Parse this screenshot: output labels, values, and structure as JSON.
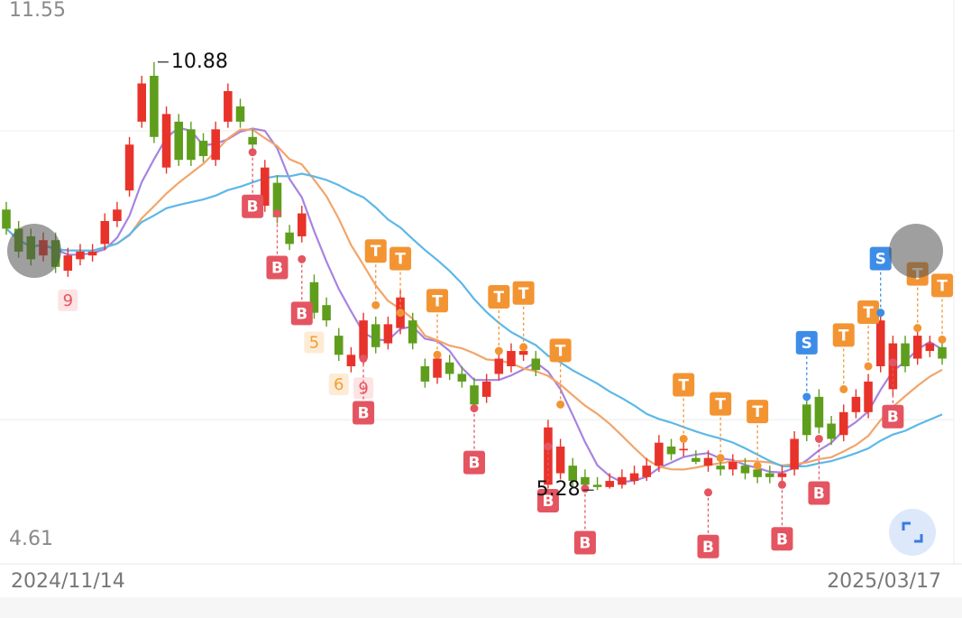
{
  "chart_data": {
    "type": "candlestick",
    "ylim": [
      4.61,
      11.55
    ],
    "yticks": [
      11.55,
      4.61
    ],
    "gridlines": [
      9.98,
      6.2
    ],
    "categories": [
      "2024/11/14",
      null,
      null,
      null,
      null,
      null,
      null,
      null,
      null,
      null,
      null,
      null,
      null,
      null,
      null,
      null,
      null,
      null,
      null,
      null,
      null,
      null,
      null,
      null,
      null,
      null,
      null,
      null,
      null,
      null,
      null,
      null,
      null,
      null,
      null,
      null,
      null,
      null,
      null,
      null,
      null,
      null,
      null,
      null,
      null,
      null,
      null,
      null,
      null,
      null,
      null,
      null,
      null,
      null,
      null,
      null,
      null,
      null,
      null,
      null,
      null,
      null,
      null,
      null,
      null,
      null,
      null,
      null,
      null,
      null,
      null,
      null,
      null,
      null,
      null,
      null,
      "2025/03/17"
    ],
    "up_color": "#e8332b",
    "down_color": "#5e9e1c",
    "open": [
      8.95,
      8.7,
      8.6,
      8.35,
      8.55,
      8.15,
      8.3,
      8.35,
      8.5,
      8.8,
      9.2,
      10.1,
      10.7,
      9.5,
      10.1,
      10.0,
      9.85,
      9.6,
      10.1,
      10.3,
      9.9,
      9.0,
      9.3,
      8.65,
      8.6,
      8.0,
      7.7,
      7.3,
      6.9,
      7.0,
      7.45,
      7.2,
      7.4,
      7.5,
      6.9,
      6.75,
      6.95,
      6.8,
      6.65,
      6.5,
      6.8,
      6.9,
      7.05,
      7.0,
      5.35,
      5.5,
      5.6,
      5.45,
      5.35,
      5.32,
      5.35,
      5.4,
      5.45,
      5.6,
      5.85,
      5.8,
      5.7,
      5.6,
      5.6,
      5.55,
      5.6,
      5.55,
      5.5,
      5.45,
      5.55,
      6.4,
      6.5,
      6.15,
      6.0,
      6.3,
      6.3,
      6.9,
      6.6,
      7.2,
      7.0,
      7.1,
      7.15
    ],
    "high": [
      9.05,
      8.8,
      8.7,
      8.65,
      8.65,
      8.45,
      8.5,
      8.5,
      8.9,
      9.05,
      9.9,
      10.7,
      10.88,
      10.3,
      10.2,
      10.1,
      9.95,
      10.1,
      10.6,
      10.4,
      10.0,
      9.6,
      9.4,
      8.75,
      9.0,
      8.1,
      7.8,
      7.4,
      7.15,
      7.6,
      7.55,
      7.55,
      7.9,
      7.6,
      7.0,
      7.1,
      7.05,
      6.9,
      6.75,
      6.8,
      7.1,
      7.2,
      7.2,
      7.1,
      6.2,
      5.95,
      5.7,
      5.55,
      5.45,
      5.5,
      5.55,
      5.6,
      5.7,
      6.0,
      5.95,
      5.92,
      5.8,
      5.8,
      5.7,
      5.75,
      5.7,
      5.65,
      5.6,
      5.6,
      6.05,
      6.5,
      6.6,
      6.25,
      6.4,
      6.6,
      6.8,
      7.6,
      7.3,
      7.3,
      7.4,
      7.3,
      7.25
    ],
    "low": [
      8.62,
      8.32,
      8.22,
      8.27,
      8.12,
      8.07,
      8.22,
      8.27,
      8.42,
      8.72,
      9.12,
      10.02,
      9.82,
      9.42,
      9.52,
      9.52,
      9.57,
      9.52,
      10.02,
      10.02,
      9.72,
      8.92,
      8.77,
      8.42,
      8.52,
      7.52,
      7.42,
      6.97,
      6.82,
      6.92,
      7.07,
      7.12,
      7.32,
      7.12,
      6.62,
      6.67,
      6.72,
      6.62,
      6.32,
      6.42,
      6.72,
      6.82,
      6.97,
      6.77,
      5.3,
      5.42,
      5.32,
      5.3,
      5.28,
      5.3,
      5.3,
      5.35,
      5.4,
      5.52,
      5.67,
      5.72,
      5.62,
      5.52,
      5.47,
      5.47,
      5.42,
      5.37,
      5.37,
      5.37,
      5.47,
      5.92,
      6.02,
      5.87,
      5.92,
      6.22,
      6.22,
      6.82,
      6.52,
      6.82,
      6.92,
      7.02,
      6.92
    ],
    "close": [
      8.7,
      8.4,
      8.3,
      8.55,
      8.2,
      8.35,
      8.4,
      8.4,
      8.8,
      8.95,
      9.8,
      10.6,
      9.9,
      10.2,
      9.6,
      9.6,
      9.65,
      10.0,
      10.5,
      10.1,
      9.8,
      9.5,
      8.85,
      8.5,
      8.9,
      7.6,
      7.5,
      7.05,
      7.05,
      7.5,
      7.15,
      7.45,
      7.8,
      7.2,
      6.7,
      7.0,
      6.8,
      6.7,
      6.4,
      6.7,
      7.0,
      7.1,
      7.1,
      6.85,
      6.1,
      5.85,
      5.4,
      5.35,
      5.32,
      5.4,
      5.45,
      5.5,
      5.6,
      5.9,
      5.75,
      5.82,
      5.65,
      5.7,
      5.55,
      5.65,
      5.5,
      5.45,
      5.45,
      5.5,
      5.95,
      6.0,
      6.1,
      5.95,
      6.3,
      6.5,
      6.7,
      7.5,
      7.2,
      6.9,
      7.3,
      7.2,
      7.0
    ],
    "moving_averages": [
      {
        "period": 5,
        "color": "#a783e0"
      },
      {
        "period": 10,
        "color": "#f2a56a"
      },
      {
        "period": 20,
        "color": "#5cb8e8"
      }
    ],
    "annotations": [
      {
        "text": "10.88",
        "index": 12,
        "value": 10.88,
        "side": "right"
      },
      {
        "text": "5.28",
        "index": 48,
        "value": 5.28,
        "side": "left"
      }
    ],
    "signals": [
      {
        "label": "9",
        "index": 5,
        "value": 8.07
      },
      {
        "label": "B",
        "index": 20,
        "value": 9.7
      },
      {
        "label": "B",
        "index": 22,
        "value": 8.9
      },
      {
        "label": "B",
        "index": 24,
        "value": 8.3
      },
      {
        "label": "5",
        "index": 25,
        "value": 7.52
      },
      {
        "label": "6",
        "index": 27,
        "value": 6.97
      },
      {
        "label": "9",
        "index": 29,
        "value": 6.92
      },
      {
        "label": "B",
        "index": 29,
        "value": 7.0
      },
      {
        "label": "B",
        "index": 38,
        "value": 6.35
      },
      {
        "label": "B",
        "index": 44,
        "value": 5.85
      },
      {
        "label": "B",
        "index": 47,
        "value": 5.3
      },
      {
        "label": "B",
        "index": 57,
        "value": 5.25
      },
      {
        "label": "B",
        "index": 63,
        "value": 5.35
      },
      {
        "label": "B",
        "index": 66,
        "value": 5.95
      },
      {
        "label": "B",
        "index": 72,
        "value": 6.95
      },
      {
        "label": "T",
        "index": 30,
        "value": 7.7
      },
      {
        "label": "T",
        "index": 32,
        "value": 7.6
      },
      {
        "label": "T",
        "index": 35,
        "value": 7.05
      },
      {
        "label": "T",
        "index": 40,
        "value": 7.1
      },
      {
        "label": "T",
        "index": 42,
        "value": 7.15
      },
      {
        "label": "T",
        "index": 45,
        "value": 6.4
      },
      {
        "label": "T",
        "index": 55,
        "value": 5.95
      },
      {
        "label": "T",
        "index": 58,
        "value": 5.7
      },
      {
        "label": "T",
        "index": 61,
        "value": 5.6
      },
      {
        "label": "T",
        "index": 68,
        "value": 6.6
      },
      {
        "label": "T",
        "index": 70,
        "value": 6.9
      },
      {
        "label": "T",
        "index": 74,
        "value": 7.4
      },
      {
        "label": "T",
        "index": 76,
        "value": 7.25
      },
      {
        "label": "S",
        "index": 65,
        "value": 6.5
      },
      {
        "label": "S",
        "index": 71,
        "value": 7.6
      }
    ]
  }
}
